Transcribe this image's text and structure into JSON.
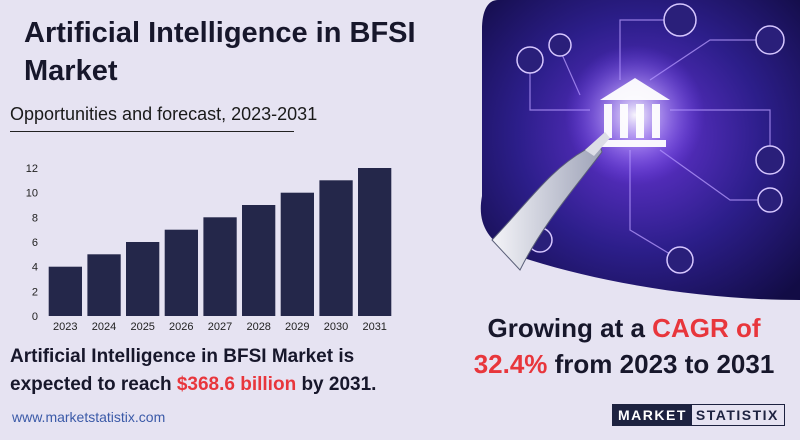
{
  "header": {
    "title": "Artificial Intelligence in BFSI Market",
    "subtitle": "Opportunities and forecast, 2023-2031"
  },
  "chart_data": {
    "type": "bar",
    "categories": [
      "2023",
      "2024",
      "2025",
      "2026",
      "2027",
      "2028",
      "2029",
      "2030",
      "2031"
    ],
    "values": [
      4,
      5,
      6,
      7,
      8,
      9,
      10,
      11,
      12
    ],
    "yticks": [
      0,
      2,
      4,
      6,
      8,
      10,
      12
    ],
    "ylim": [
      0,
      12
    ],
    "bar_color": "#24274a",
    "grid": false
  },
  "summary": {
    "line_start": "Artificial Intelligence in BFSI Market is expected to reach ",
    "highlight": "$368.6 billion",
    "line_end": " by 2031."
  },
  "cagr": {
    "prefix": "Growing at a ",
    "label": "CAGR of",
    "rate": "32.4%",
    "suffix": " from 2023 to 2031"
  },
  "footer": {
    "website": "www.marketstatistix.com",
    "logo_part1": "MARKET",
    "logo_part2": "STATISTIX"
  },
  "colors": {
    "accent": "#e8363c",
    "dark": "#17172b",
    "background": "#e6e3f2"
  },
  "hero_image": {
    "icon": "robot-hand-bank-icon"
  }
}
